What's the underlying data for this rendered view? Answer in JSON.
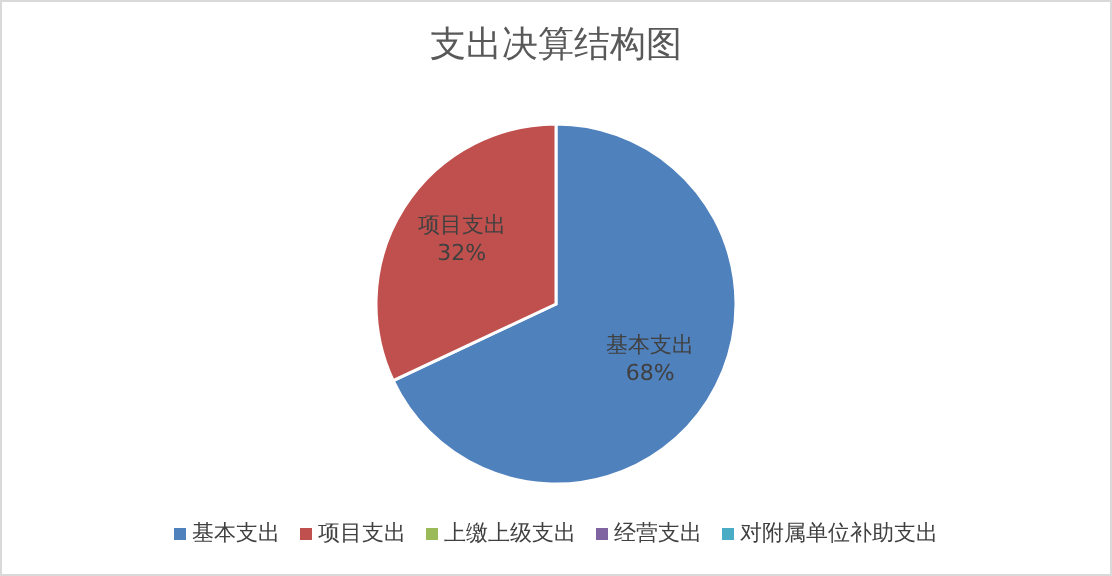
{
  "chart_data": {
    "type": "pie",
    "title": "支出决算结构图",
    "categories": [
      "基本支出",
      "项目支出",
      "上缴上级支出",
      "经营支出",
      "对附属单位补助支出"
    ],
    "values": [
      68,
      32,
      0,
      0,
      0
    ],
    "value_labels": [
      "68%",
      "32%",
      null,
      null,
      null
    ],
    "colors": [
      "#4f81bd",
      "#c0504d",
      "#9bbb59",
      "#8064a2",
      "#4bacc6"
    ],
    "legend": "bottom"
  }
}
